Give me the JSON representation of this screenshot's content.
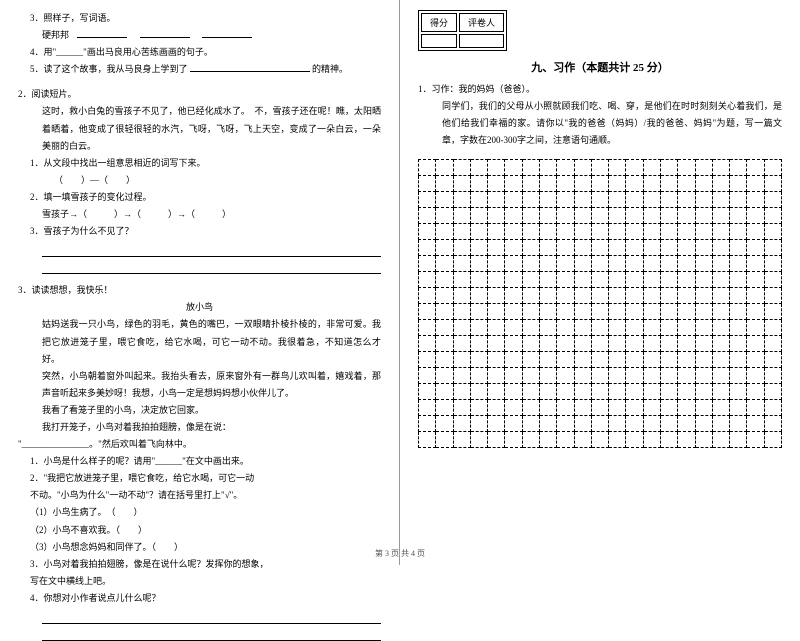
{
  "left": {
    "q3": "3．照样子，写词语。",
    "q3_example": "硬邦邦",
    "q4": "4．用\"______\"画出马良用心苦练画画的句子。",
    "q5a": "5．读了这个故事，我从马良身上学到了",
    "q5b": "的精神。",
    "p2_title": "2．阅读短片。",
    "p2_body1": "这时，救小白兔的雪孩子不见了，他已经化成水了。　不，雪孩子还在呢！瞧，太阳晒着晒着，他变成了很轻很轻的水汽，飞呀，飞呀，飞上天空，变成了一朵白云，一朵美丽的白云。",
    "p2_q1": "1．从文段中找出一组意思相近的词写下来。",
    "p2_q1_blank": "（　　）—（　　）",
    "p2_q2": "2．填一填雪孩子的变化过程。",
    "p2_q2_blank": "雪孩子→（　　　）→（　　　）→（　　　）",
    "p2_q3": "3．雪孩子为什么不见了？",
    "p3_title": "3．读读想想，我快乐！",
    "p3_sub": "放小鸟",
    "p3_b1": "姑妈送我一只小鸟，绿色的羽毛，黄色的嘴巴，一双眼睛扑棱扑棱的，非常可爱。我把它放进笼子里，喂它食吃，给它水喝，可它一动不动。我很着急，不知道怎么才好。",
    "p3_b2": "突然，小鸟朝着窗外叫起来。我抬头看去，原来窗外有一群鸟儿欢叫着，嬉戏着，那声音听起来多美妙呀！我想，小鸟一定是想妈妈想小伙伴儿了。",
    "p3_b3": "我看了看笼子里的小鸟，决定放它回家。",
    "p3_b4a": "我打开笼子，小鸟对着我拍拍翅膀，像是在说：",
    "p3_b4b": "\"_______________。\"然后欢叫着飞向林中。",
    "p3_q1": "1．小鸟是什么样子的呢？请用\"______\"在文中画出来。",
    "p3_q2": "2．\"我把它放进笼子里，喂它食吃，给它水喝，可它一动",
    "p3_q2b": "不动。\"小鸟为什么\"一动不动\"？请在括号里打上\"√\"。",
    "p3_q2_o1": "（1）小鸟生病了。　（　　）",
    "p3_q2_o2": "（2）小鸟不喜欢我。（　　）",
    "p3_q2_o3": "（3）小鸟想念妈妈和同伴了。（　　）",
    "p3_q3": "3．小鸟对着我拍拍翅膀，像是在说什么呢？发挥你的想象，",
    "p3_q3b": "写在文中横线上吧。",
    "p3_q4": "4．你想对小作者说点儿什么呢？"
  },
  "right": {
    "score_l": "得分",
    "score_r": "评卷人",
    "section": "九、习作（本题共计 25 分）",
    "q1": "1．习作：我的妈妈（爸爸）。",
    "body": "同学们，我们的父母从小照就顾我们吃、喝、穿，是他们在时时刻刻关心着我们，是他们给我们幸福的家。请你以\"我的爸爸（妈妈）/我的爸爸、妈妈\"为题，写一篇文章，字数在200-300字之间，注意语句通顺。",
    "grid": {
      "rows": 18,
      "cols": 21
    }
  },
  "footer": "第 3 页 共 4 页"
}
